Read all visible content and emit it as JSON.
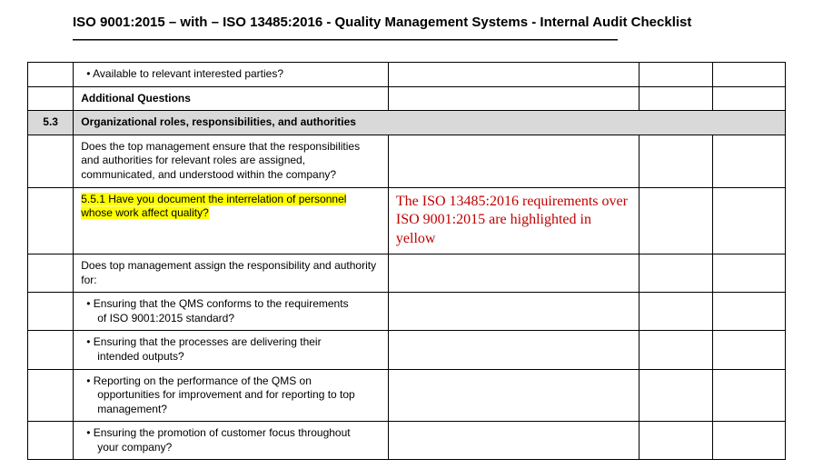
{
  "title": "ISO 9001:2015 – with – ISO 13485:2016 - Quality Management Systems - Internal Audit Checklist",
  "rule": "————————————————————————————————————————",
  "annotation": "The ISO 13485:2016 requirements over ISO 9001:2015 are highlighted in yellow",
  "rows": {
    "r1": "• Available to relevant interested parties?",
    "r2": "Additional Questions",
    "sec_num": "5.3",
    "sec_title": "Organizational roles, responsibilities, and authorities",
    "r3": "Does the top management ensure that the responsibilities and authorities for relevant roles are assigned, communicated, and understood within the company?",
    "r4": "5.5.1 Have you document the interrelation of personnel whose work affect quality?",
    "r5": "Does top management assign the responsibility and authority for:",
    "r6a": "• Ensuring that the QMS conforms to the requirements",
    "r6b": "of ISO 9001:2015 standard?",
    "r7a": "• Ensuring that the processes are delivering their",
    "r7b": "intended outputs?",
    "r8a": "• Reporting on the performance of the QMS on",
    "r8b": "opportunities for improvement and for reporting to top",
    "r8c": "management?",
    "r9a": "• Ensuring the promotion of customer focus throughout",
    "r9b": "your company?"
  },
  "colors": {
    "highlight": "#ffff00",
    "section_bg": "#d9d9d9",
    "annotation_color": "#c00000",
    "page_bg": "#ffffff"
  }
}
